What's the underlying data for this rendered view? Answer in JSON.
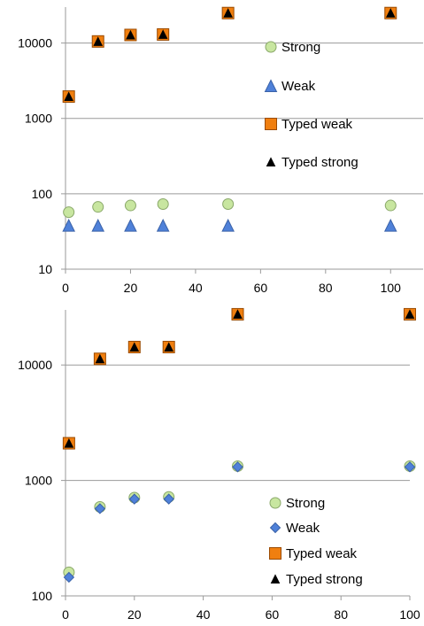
{
  "chart_data": [
    {
      "type": "scatter",
      "title": "",
      "xlabel": "",
      "ylabel": "",
      "y_scale": "log",
      "xlim": [
        0,
        110
      ],
      "ylim": [
        10,
        30000
      ],
      "x_ticks": [
        "0",
        "20",
        "40",
        "60",
        "80",
        "100"
      ],
      "y_ticks": [
        "10",
        "100",
        "1000",
        "10000"
      ],
      "grid": "horizontal",
      "legend": "right",
      "series": [
        {
          "name": "Strong",
          "marker": "circle",
          "color": "#c8e6a0",
          "stroke": "#8aa86a",
          "x": [
            1,
            10,
            20,
            30,
            50,
            100
          ],
          "y": [
            57,
            67,
            70,
            73,
            73,
            70
          ]
        },
        {
          "name": "Weak",
          "marker": "triangle",
          "color": "#4f81d9",
          "stroke": "#3a62a8",
          "x": [
            1,
            10,
            20,
            30,
            50,
            100
          ],
          "y": [
            38,
            38,
            38,
            38,
            38,
            38
          ]
        },
        {
          "name": "Typed weak",
          "marker": "square",
          "color": "#f07f0f",
          "stroke": "#9a4a00",
          "x": [
            1,
            10,
            20,
            30,
            50,
            100
          ],
          "y": [
            1950,
            10500,
            12800,
            13000,
            25000,
            25000
          ]
        },
        {
          "name": "Typed strong",
          "marker": "triangle",
          "color": "#000000",
          "stroke": "#000000",
          "x": [
            1,
            10,
            20,
            30,
            50,
            100
          ],
          "y": [
            1950,
            10500,
            12800,
            13000,
            25000,
            25000
          ]
        }
      ]
    },
    {
      "type": "scatter",
      "title": "",
      "xlabel": "",
      "ylabel": "",
      "y_scale": "log",
      "xlim": [
        0,
        100
      ],
      "ylim": [
        100,
        30000
      ],
      "x_ticks": [
        "0",
        "20",
        "40",
        "60",
        "80",
        "100"
      ],
      "y_ticks": [
        "100",
        "1000",
        "10000"
      ],
      "grid": "horizontal",
      "legend": "bottom-right",
      "series": [
        {
          "name": "Strong",
          "marker": "circle",
          "color": "#c8e6a0",
          "stroke": "#8aa86a",
          "x": [
            1,
            10,
            20,
            30,
            50,
            100
          ],
          "y": [
            160,
            590,
            710,
            720,
            1330,
            1330
          ]
        },
        {
          "name": "Weak",
          "marker": "diamond",
          "color": "#4f81d9",
          "stroke": "#3a62a8",
          "x": [
            1,
            10,
            20,
            30,
            50,
            100
          ],
          "y": [
            145,
            570,
            690,
            690,
            1310,
            1310
          ]
        },
        {
          "name": "Typed weak",
          "marker": "square",
          "color": "#f07f0f",
          "stroke": "#9a4a00",
          "x": [
            1,
            10,
            20,
            30,
            50,
            100
          ],
          "y": [
            2100,
            11300,
            14300,
            14300,
            27500,
            27500
          ]
        },
        {
          "name": "Typed strong",
          "marker": "triangle",
          "color": "#000000",
          "stroke": "#000000",
          "x": [
            1,
            10,
            20,
            30,
            50,
            100
          ],
          "y": [
            2100,
            11300,
            14300,
            14300,
            27500,
            27500
          ]
        }
      ]
    }
  ]
}
